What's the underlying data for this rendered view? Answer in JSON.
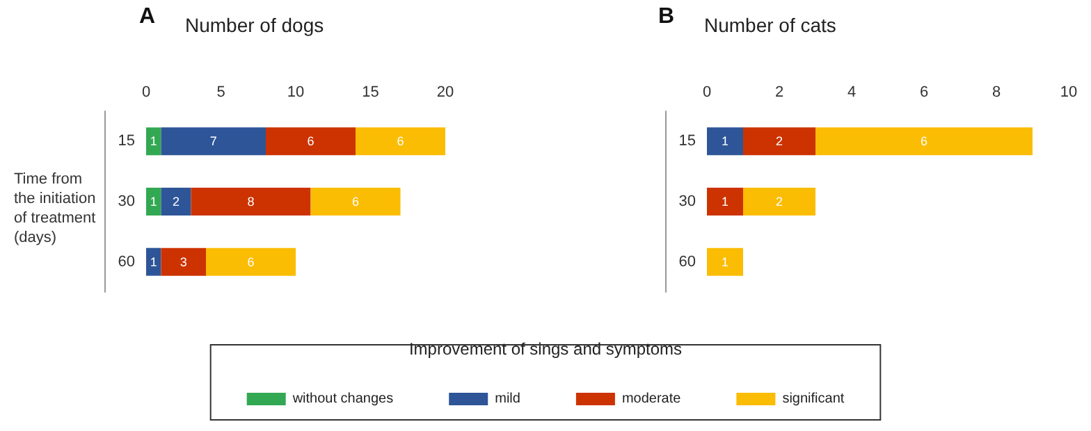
{
  "chart_data": [
    {
      "type": "bar",
      "orientation": "horizontal",
      "stacked": true,
      "title": "Number of dogs",
      "annotations": [
        "A"
      ],
      "ylabel": "Time from the initiation of treatment (days)",
      "categories": [
        "15",
        "30",
        "60"
      ],
      "xlim": [
        0,
        20
      ],
      "xticks": [
        0,
        5,
        10,
        15,
        20
      ],
      "grid": false,
      "legend": "bottom",
      "legend_title": "Improvement of sings and symptoms",
      "series": [
        {
          "name": "without changes",
          "color": "#33a852",
          "values": [
            1,
            1,
            null
          ],
          "value_labels": [
            "1",
            "1",
            null
          ]
        },
        {
          "name": "mild",
          "color": "#2e5597",
          "values": [
            7,
            2,
            1
          ],
          "value_labels": [
            "7",
            "2",
            "1"
          ]
        },
        {
          "name": "moderate",
          "color": "#cc3300",
          "values": [
            6,
            8,
            3
          ],
          "value_labels": [
            "6",
            "8",
            "3"
          ]
        },
        {
          "name": "significant",
          "color": "#fbbc04",
          "values": [
            6,
            6,
            6
          ],
          "value_labels": [
            "6",
            "6",
            "6"
          ]
        }
      ]
    },
    {
      "type": "bar",
      "orientation": "horizontal",
      "stacked": true,
      "title": "Number of cats",
      "annotations": [
        "B"
      ],
      "categories": [
        "15",
        "30",
        "60"
      ],
      "xlim": [
        0,
        10
      ],
      "xticks": [
        0,
        2,
        4,
        6,
        8,
        10
      ],
      "grid": false,
      "series": [
        {
          "name": "without changes",
          "color": "#33a852",
          "values": [
            null,
            null,
            null
          ],
          "value_labels": [
            null,
            null,
            null
          ]
        },
        {
          "name": "mild",
          "color": "#2e5597",
          "values": [
            1,
            null,
            null
          ],
          "value_labels": [
            "1",
            null,
            null
          ]
        },
        {
          "name": "moderate",
          "color": "#cc3300",
          "values": [
            2,
            1,
            null
          ],
          "value_labels": [
            "2",
            "1",
            null
          ]
        },
        {
          "name": "significant",
          "color": "#fbbc04",
          "values": [
            6,
            2,
            1
          ],
          "value_labels": [
            "6",
            "2",
            "1"
          ]
        }
      ]
    }
  ]
}
